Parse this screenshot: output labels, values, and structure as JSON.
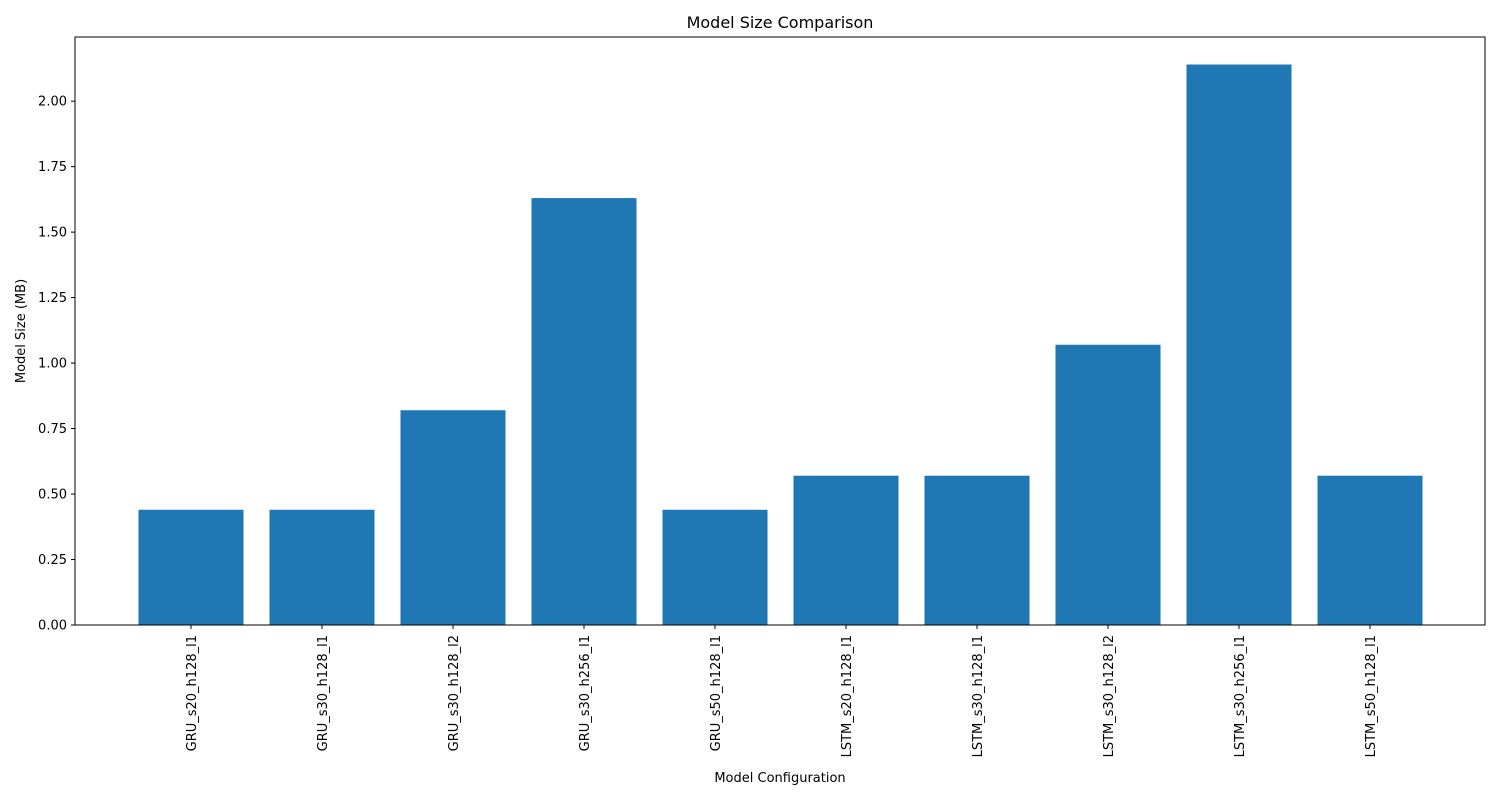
{
  "chart_data": {
    "type": "bar",
    "title": "Model Size Comparison",
    "xlabel": "Model Configuration",
    "ylabel": "Model Size (MB)",
    "categories": [
      "GRU_s20_h128_l1",
      "GRU_s30_h128_l1",
      "GRU_s30_h128_l2",
      "GRU_s30_h256_l1",
      "GRU_s50_h128_l1",
      "LSTM_s20_h128_l1",
      "LSTM_s30_h128_l1",
      "LSTM_s30_h128_l2",
      "LSTM_s30_h256_l1",
      "LSTM_s50_h128_l1"
    ],
    "values": [
      0.44,
      0.44,
      0.82,
      1.63,
      0.44,
      0.57,
      0.57,
      1.07,
      2.14,
      0.57
    ],
    "ylim": [
      0,
      2.245
    ],
    "yticks": [
      "0.00",
      "0.25",
      "0.50",
      "0.75",
      "1.00",
      "1.25",
      "1.50",
      "1.75",
      "2.00"
    ],
    "bar_color": "#1f77b4",
    "grid": false,
    "legend": "none"
  }
}
